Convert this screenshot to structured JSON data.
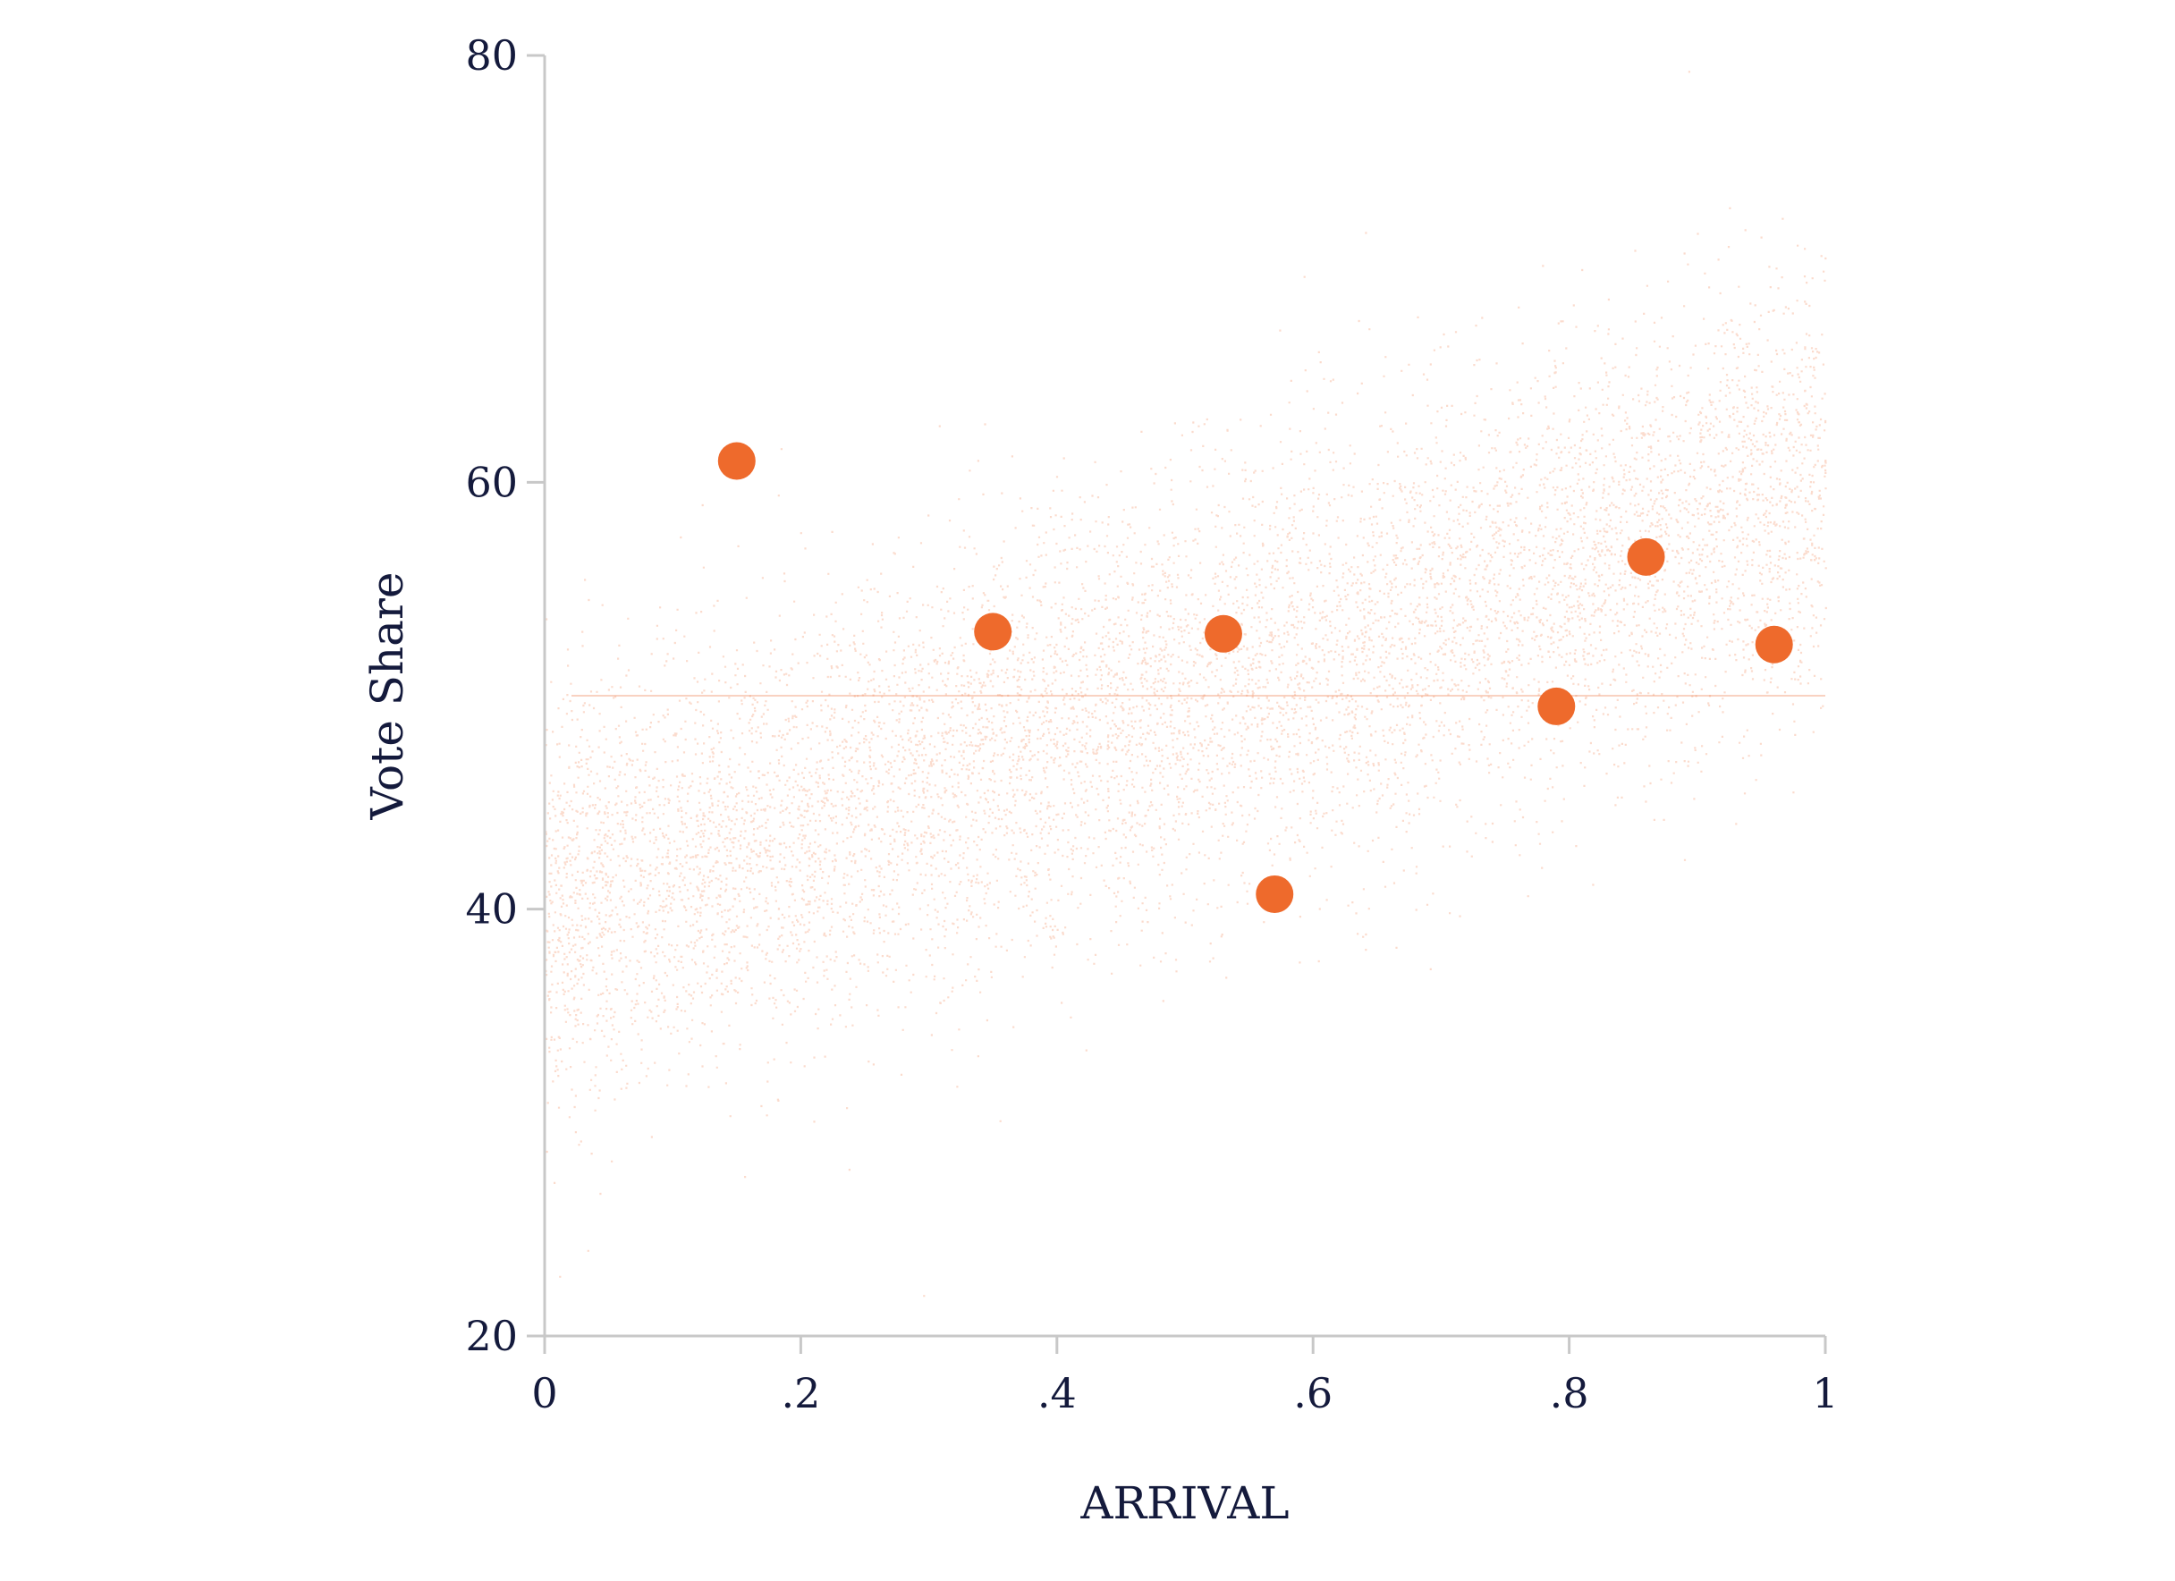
{
  "chart_data": {
    "type": "scatter",
    "title": "",
    "xlabel": "ARRIVAL",
    "ylabel": "Vote Share",
    "xlim": [
      0,
      1
    ],
    "ylim": [
      20,
      80
    ],
    "x_ticks": [
      {
        "value": 0,
        "label": "0"
      },
      {
        "value": 0.2,
        "label": ".2"
      },
      {
        "value": 0.4,
        "label": ".4"
      },
      {
        "value": 0.6,
        "label": ".6"
      },
      {
        "value": 0.8,
        "label": ".8"
      },
      {
        "value": 1,
        "label": "1"
      }
    ],
    "y_ticks": [
      {
        "value": 20,
        "label": "20"
      },
      {
        "value": 40,
        "label": "40"
      },
      {
        "value": 60,
        "label": "60"
      },
      {
        "value": 80,
        "label": "80"
      }
    ],
    "grid": false,
    "colors": {
      "points": "#ee6a2c",
      "cloud": "#ef7f4c",
      "axis": "#c8c8c8",
      "text": "#141a3c"
    },
    "background_cloud": {
      "description_of_trend": {
        "intercept": 40,
        "slope": 20,
        "spread": 5
      },
      "approx_count": 9000
    },
    "series": [
      {
        "points": [
          {
            "x": 0.15,
            "y": 61.0
          },
          {
            "x": 0.35,
            "y": 53.0
          },
          {
            "x": 0.53,
            "y": 52.9
          },
          {
            "x": 0.57,
            "y": 40.7
          },
          {
            "x": 0.79,
            "y": 49.5
          },
          {
            "x": 0.86,
            "y": 56.5
          },
          {
            "x": 0.96,
            "y": 52.4
          }
        ]
      }
    ]
  }
}
